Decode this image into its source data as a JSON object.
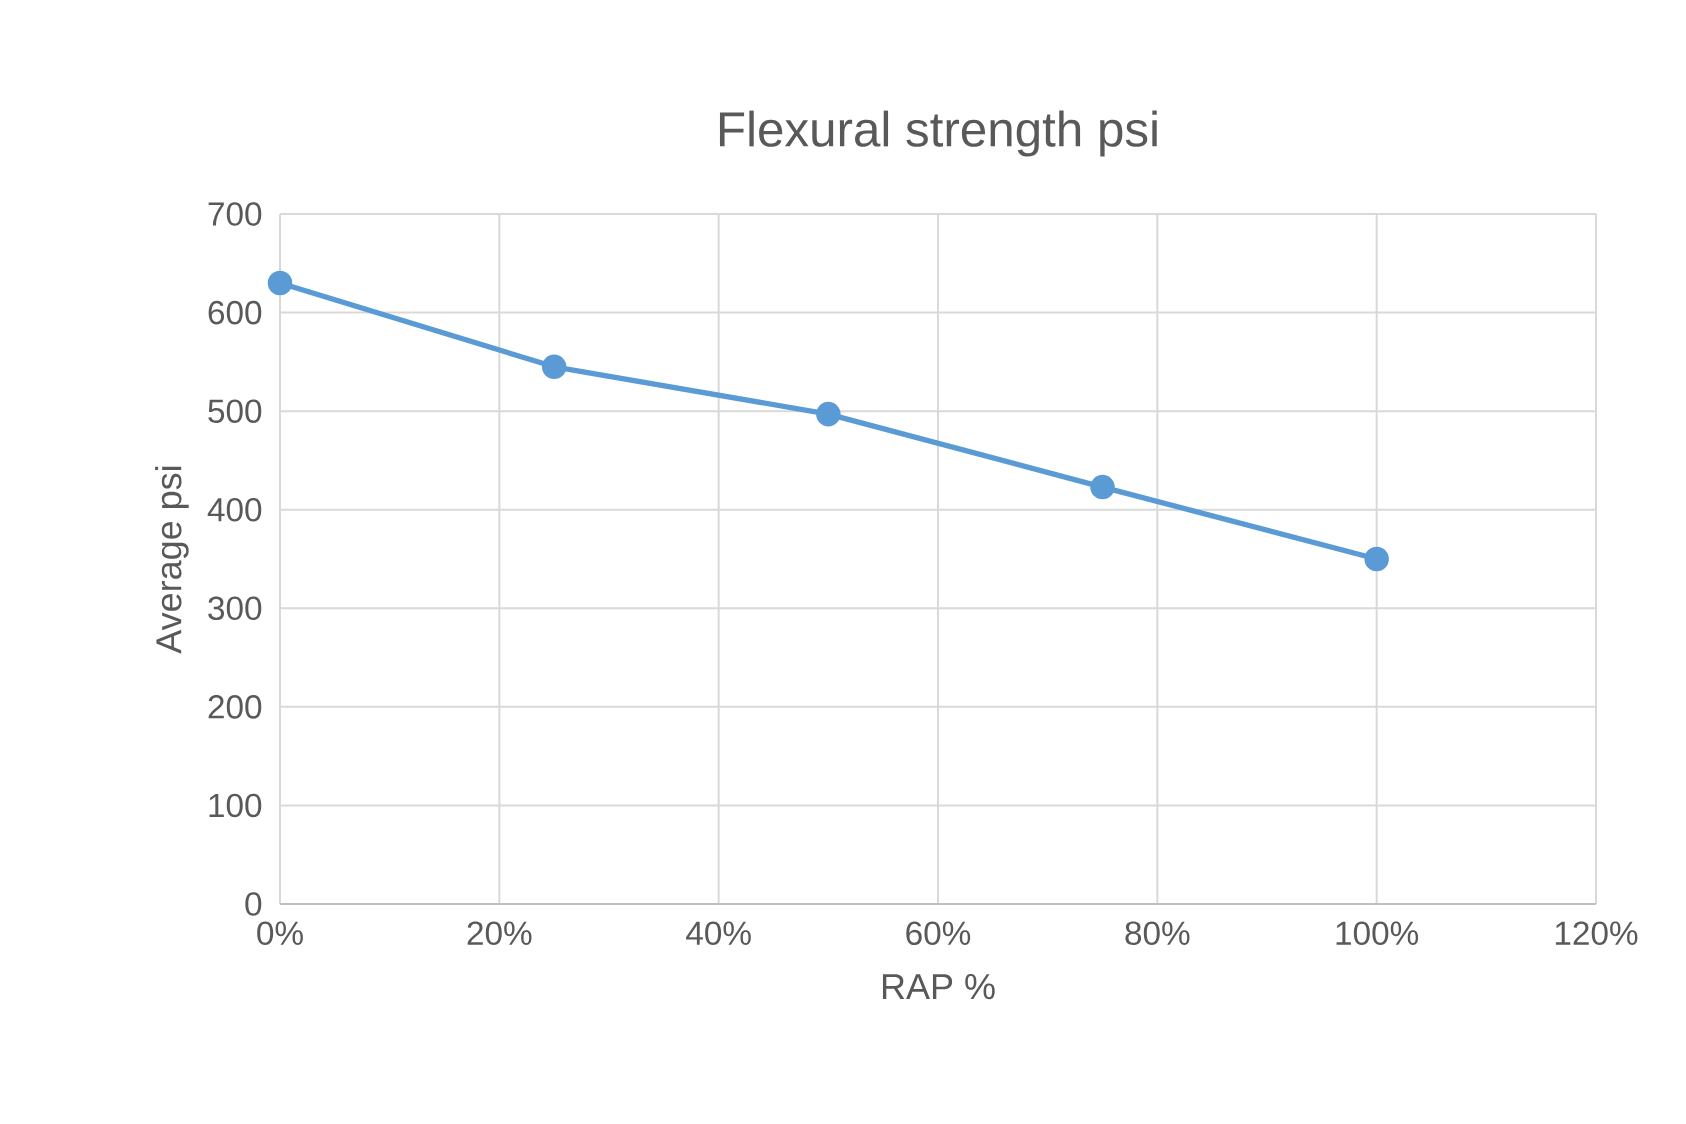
{
  "chart_data": {
    "type": "line",
    "title": "Flexural strength psi",
    "xlabel": "RAP %",
    "ylabel": "Average psi",
    "x": [
      0,
      25,
      50,
      75,
      100
    ],
    "series": [
      {
        "color": "#5b9bd5",
        "values": [
          630,
          545,
          497,
          423,
          350
        ]
      }
    ],
    "xlim": [
      0,
      120
    ],
    "xticks": [
      {
        "value": 0,
        "label": "0%"
      },
      {
        "value": 20,
        "label": "20%"
      },
      {
        "value": 40,
        "label": "40%"
      },
      {
        "value": 60,
        "label": "60%"
      },
      {
        "value": 80,
        "label": "80%"
      },
      {
        "value": 100,
        "label": "100%"
      },
      {
        "value": 120,
        "label": "120%"
      }
    ],
    "ylim": [
      0,
      700
    ],
    "yticks": [
      0,
      100,
      200,
      300,
      400,
      500,
      600,
      700
    ],
    "grid": true,
    "marker": "circle",
    "line_style": "solid"
  }
}
